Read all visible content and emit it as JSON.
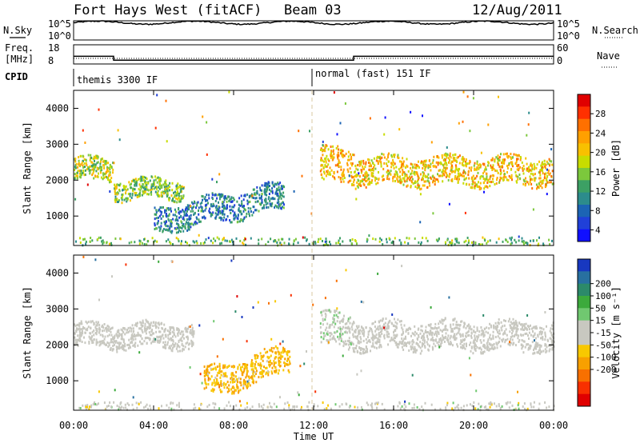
{
  "header": {
    "title": "Fort Hays West (fitACF)",
    "beam": "Beam 03",
    "date": "12/Aug/2011"
  },
  "top_panels": {
    "nsky_label": "N.Sky",
    "nsky_tick_top": "10^5",
    "nsky_tick_bottom": "10^0",
    "nsearch_label": "N.Search",
    "nsearch_tick_top": "10^5",
    "nsearch_tick_bottom": "10^0",
    "freq_label_top": "Freq.",
    "freq_label_unit": "[MHz]",
    "freq_tick_top": "18",
    "freq_tick_bottom": "8",
    "nave_label": "Nave",
    "nave_tick_top": "60",
    "nave_tick_bottom": "0",
    "cpid_label": "CPID",
    "cpid_left": "themis 3300 IF",
    "cpid_right": "normal (fast) 151 IF"
  },
  "power_panel": {
    "ylabel": "Slant Range [km]",
    "yticks": [
      "4000",
      "3000",
      "2000",
      "1000"
    ],
    "colorbar_label": "Power [dB]",
    "colorbar_ticks": [
      "28",
      "24",
      "20",
      "16",
      "12",
      "8",
      "4"
    ],
    "colorbar_colors": [
      "#e00000",
      "#ff3000",
      "#ff7000",
      "#ffa000",
      "#f8c000",
      "#c8dc00",
      "#7cc83c",
      "#3ca064",
      "#2c8c8c",
      "#1c64b4",
      "#2040d8",
      "#1010ff"
    ]
  },
  "velocity_panel": {
    "ylabel": "Slant Range [km]",
    "yticks": [
      "4000",
      "3000",
      "2000",
      "1000"
    ],
    "colorbar_label": "Velocity [m s⁻¹]",
    "colorbar_ticks": [
      "200",
      "100",
      "50",
      "15",
      "-15",
      "-50",
      "-100",
      "-200"
    ],
    "colorbar_colors": [
      "#1838c0",
      "#2870a0",
      "#2c8a6a",
      "#3caa3c",
      "#70c870",
      "#c8c8c0",
      "#c8c8c0",
      "#f8c800",
      "#f8a000",
      "#f87000",
      "#f83000",
      "#e00000"
    ]
  },
  "xaxis": {
    "label": "Time UT",
    "ticks": [
      "00:00",
      "04:00",
      "08:00",
      "12:00",
      "16:00",
      "20:00",
      "00:00"
    ]
  },
  "chart_data": {
    "type": "heatmap",
    "title": "Fort Hays West (fitACF)",
    "subtitle": "Beam 03",
    "date": "12/Aug/2011",
    "xlabel": "Time UT",
    "xlim_hours": [
      0,
      24
    ],
    "panels": [
      {
        "name": "Power",
        "ylabel": "Slant Range [km]",
        "ylim_km": [
          180,
          4500
        ],
        "colorbar": "Power [dB]",
        "crange": [
          0,
          30
        ],
        "features": [
          {
            "t": [
              0.0,
              2.0
            ],
            "range_km": [
              1800,
              2800
            ],
            "mean": 16
          },
          {
            "t": [
              2.0,
              5.5
            ],
            "range_km": [
              1300,
              2200
            ],
            "mean": 14
          },
          {
            "t": [
              4.0,
              10.5
            ],
            "range_km": [
              600,
              1800
            ],
            "mean": 8
          },
          {
            "t": [
              12.3,
              14.0
            ],
            "range_km": [
              1600,
              3200
            ],
            "mean": 20
          },
          {
            "t": [
              14.0,
              24.0
            ],
            "range_km": [
              1600,
              2900
            ],
            "mean": 19
          }
        ]
      },
      {
        "name": "Velocity",
        "ylabel": "Slant Range [km]",
        "ylim_km": [
          180,
          4500
        ],
        "colorbar": "Velocity [m s-1]",
        "crange": [
          -200,
          200
        ],
        "features": [
          {
            "t": [
              0.0,
              6.0
            ],
            "range_km": [
              1700,
              2800
            ],
            "mean": 0
          },
          {
            "t": [
              6.5,
              10.8
            ],
            "range_km": [
              600,
              1900
            ],
            "mean": -60
          },
          {
            "t": [
              12.3,
              14.0
            ],
            "range_km": [
              1600,
              3200
            ],
            "mean": 20
          },
          {
            "t": [
              14.0,
              24.0
            ],
            "range_km": [
              1600,
              2900
            ],
            "mean": 0
          }
        ]
      }
    ],
    "nsky_range": [
      1,
      100000
    ],
    "freq_mhz_range": [
      8,
      18
    ],
    "freq_mhz": [
      {
        "t": [
          0,
          2
        ],
        "value": 12
      },
      {
        "t": [
          2,
          14
        ],
        "value": 10
      },
      {
        "t": [
          14,
          24
        ],
        "value": 12
      }
    ],
    "nave_range": [
      0,
      60
    ],
    "cpid": [
      {
        "t": [
          0,
          12
        ],
        "label": "themis 3300 IF"
      },
      {
        "t": [
          12,
          24
        ],
        "label": "normal (fast) 151 IF"
      }
    ]
  }
}
